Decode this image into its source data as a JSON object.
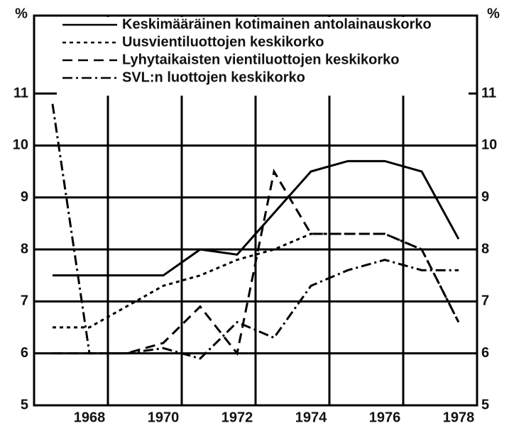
{
  "chart_data": {
    "type": "line",
    "y_label": "%",
    "x": [
      1967,
      1968,
      1969,
      1970,
      1971,
      1972,
      1973,
      1974,
      1975,
      1976,
      1977,
      1978
    ],
    "series": [
      {
        "name": "Keskimääräinen kotimainen antolainauskorko",
        "color": "#000000",
        "dash": "solid",
        "values": [
          7.5,
          7.5,
          7.5,
          7.5,
          8.0,
          7.9,
          8.7,
          9.5,
          9.7,
          9.7,
          9.5,
          8.2
        ]
      },
      {
        "name": "Uusvientiluottojen keskikorko",
        "color": "#000000",
        "dash": "dotted",
        "values": [
          6.5,
          6.5,
          6.9,
          7.3,
          7.5,
          7.8,
          8.0,
          8.3,
          8.3,
          8.3,
          8.0,
          6.6
        ]
      },
      {
        "name": "Lyhytaikaisten vientiluottojen keskikorko",
        "color": "#000000",
        "dash": "dashed",
        "values": [
          6.0,
          6.0,
          6.0,
          6.2,
          6.9,
          6.0,
          9.5,
          8.3,
          8.3,
          8.3,
          8.0,
          6.6
        ]
      },
      {
        "name": "SVL:n luottojen keskikorko",
        "color": "#000000",
        "dash": "dashdot",
        "values": [
          10.8,
          6.0,
          6.0,
          6.1,
          5.9,
          6.6,
          6.3,
          7.3,
          7.6,
          7.8,
          7.6,
          7.6
        ]
      }
    ],
    "xlim": [
      1966.5,
      1978.5
    ],
    "xticks": [
      1968,
      1970,
      1972,
      1974,
      1976,
      1978
    ],
    "xgrid": [
      1968.5,
      1970.5,
      1972.5,
      1974.5,
      1976.5
    ],
    "ylim": [
      5,
      12.5
    ],
    "yticks": [
      5,
      6,
      7,
      8,
      9,
      10,
      11
    ],
    "grid": true,
    "legend": "top"
  }
}
